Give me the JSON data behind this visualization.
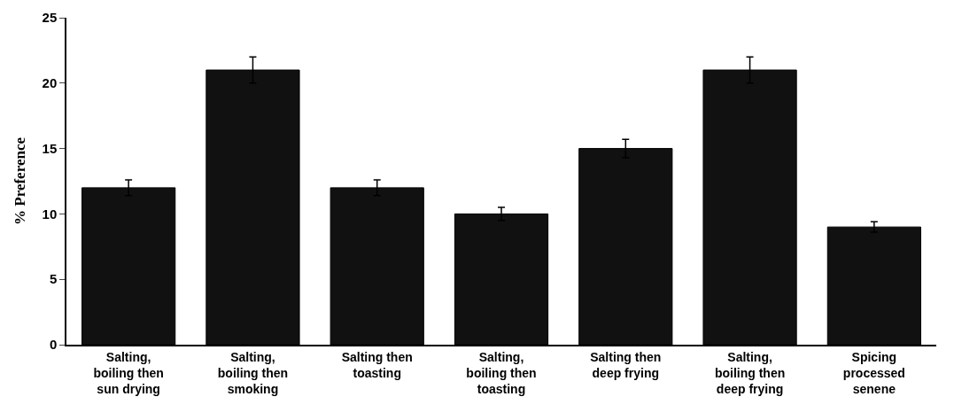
{
  "chart_data": {
    "type": "bar",
    "ylabel": "% Preference",
    "categories": [
      "Salting, boiling then sun drying",
      "Salting, boiling then smoking",
      "Salting then toasting",
      "Salting, boiling then toasting",
      "Salting then deep frying",
      "Salting, boiling then deep frying",
      "Spicing processed senene"
    ],
    "values": [
      12,
      21,
      12,
      10,
      15,
      21,
      9
    ],
    "errors": [
      0.6,
      1.0,
      0.6,
      0.5,
      0.7,
      1.0,
      0.4
    ],
    "color": "#111111",
    "ylim": [
      0,
      25
    ],
    "yticks": [
      0,
      5,
      10,
      15,
      20,
      25
    ],
    "grid": false
  }
}
